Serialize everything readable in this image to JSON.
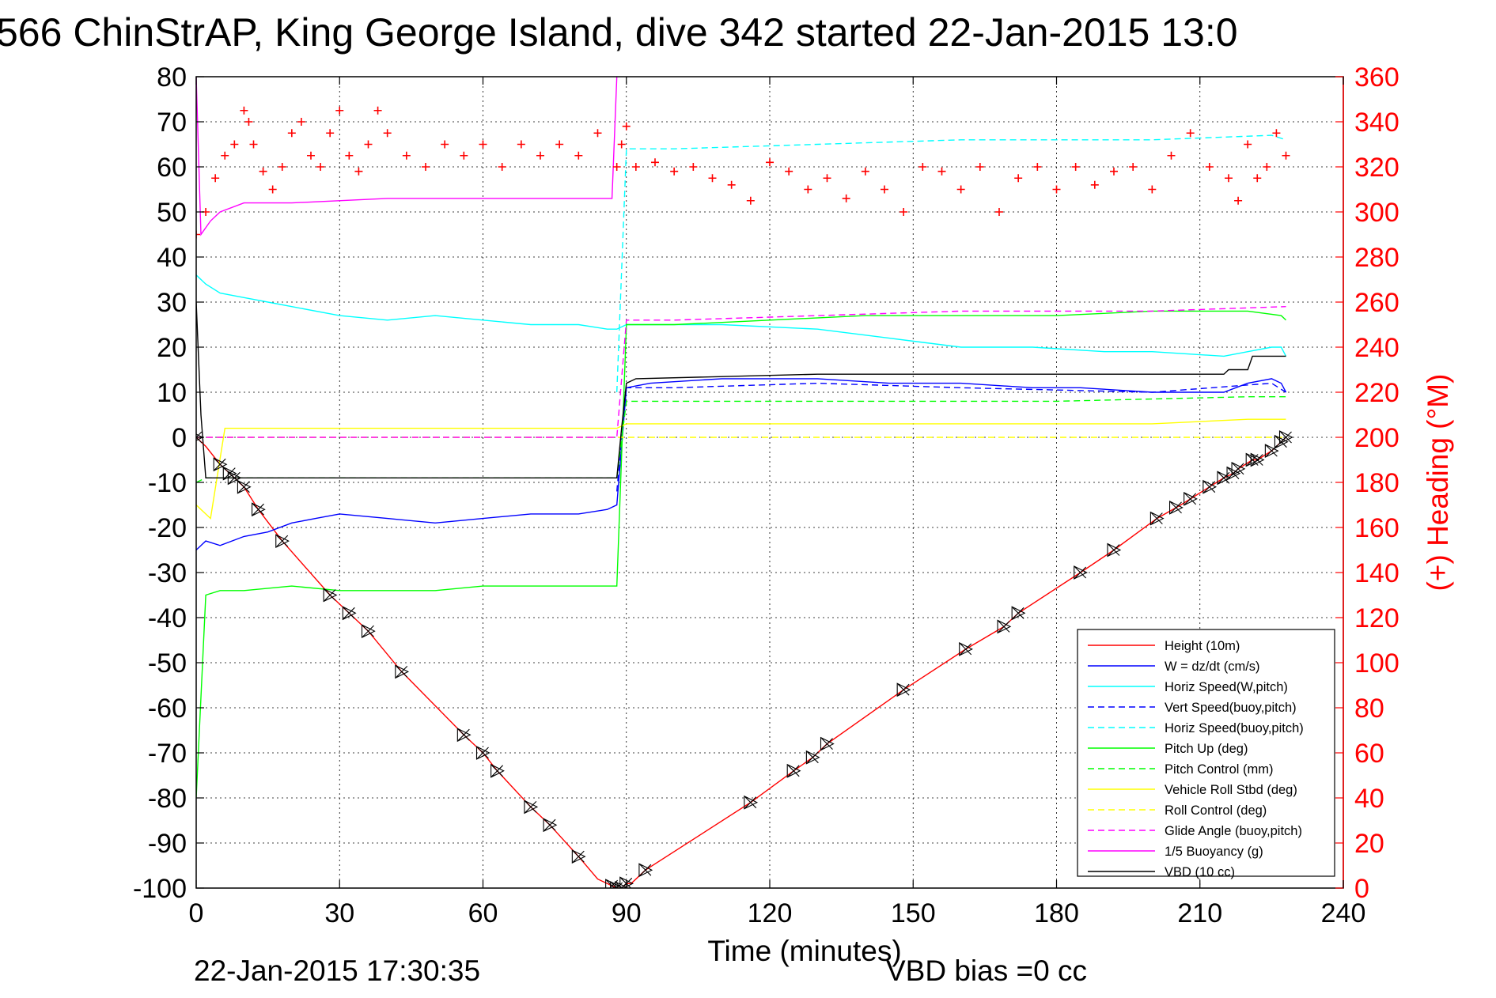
{
  "chart_data": {
    "type": "line",
    "title": "566 ChinStrAP, King George Island, dive 342 started 22-Jan-2015 13:0",
    "xlabel": "Time (minutes)",
    "ylabel_right": "(+) Heading (°M)",
    "xlim": [
      0,
      240
    ],
    "ylim": [
      -100,
      80
    ],
    "ylim_right": [
      0,
      360
    ],
    "x_ticks": [
      "0",
      "30",
      "60",
      "90",
      "120",
      "150",
      "180",
      "210",
      "240"
    ],
    "y_ticks": [
      "80",
      "70",
      "60",
      "50",
      "40",
      "30",
      "20",
      "10",
      "0",
      "-10",
      "-20",
      "-30",
      "-40",
      "-50",
      "-60",
      "-70",
      "-80",
      "-90",
      "-100"
    ],
    "y_right_ticks": [
      "360",
      "340",
      "320",
      "300",
      "280",
      "260",
      "240",
      "220",
      "200",
      "180",
      "160",
      "140",
      "120",
      "100",
      "80",
      "60",
      "40",
      "20",
      "0"
    ],
    "grid": true,
    "legend_position": "bottom-right",
    "footer_left": "22-Jan-2015 17:30:35",
    "footer_right": "VBD bias =0 cc",
    "series": [
      {
        "name": "Height (10m)",
        "color": "#ff0000",
        "style": "solid",
        "x": [
          0,
          2,
          5,
          8,
          10,
          13,
          18,
          28,
          32,
          36,
          43,
          56,
          60,
          63,
          70,
          74,
          80,
          84,
          88,
          89,
          90,
          91,
          94,
          116,
          125,
          129,
          132,
          148,
          161,
          169,
          172,
          185,
          192,
          201,
          206,
          209,
          212,
          215,
          217,
          218,
          221,
          222,
          225,
          227,
          228
        ],
        "y": [
          0,
          -2,
          -6,
          -9,
          -11,
          -16,
          -23,
          -35,
          -39,
          -43,
          -52,
          -66,
          -70,
          -74,
          -82,
          -86,
          -93,
          -98,
          -100,
          -100,
          -99,
          -99,
          -96,
          -81,
          -74,
          -71,
          -68,
          -56,
          -47,
          -42,
          -39,
          -30,
          -25,
          -18,
          -15,
          -13,
          -11,
          -9,
          -8,
          -7,
          -5,
          -5,
          -3,
          -1,
          0
        ]
      },
      {
        "name": "W = dz/dt (cm/s)",
        "color": "#0000ff",
        "style": "solid",
        "x": [
          0,
          2,
          5,
          10,
          15,
          20,
          25,
          30,
          40,
          50,
          60,
          70,
          80,
          86,
          88,
          90,
          95,
          110,
          130,
          145,
          160,
          175,
          185,
          200,
          215,
          220,
          225,
          227,
          228
        ],
        "y": [
          -25,
          -23,
          -24,
          -22,
          -21,
          -19,
          -18,
          -17,
          -18,
          -19,
          -18,
          -17,
          -17,
          -16,
          -15,
          11,
          12,
          13,
          13,
          12,
          12,
          11,
          11,
          10,
          10,
          12,
          13,
          12,
          10
        ]
      },
      {
        "name": "Horiz Speed(W,pitch)",
        "color": "#00ffff",
        "style": "solid",
        "x": [
          0,
          2,
          5,
          10,
          15,
          20,
          30,
          40,
          50,
          60,
          70,
          80,
          86,
          88,
          90,
          95,
          110,
          130,
          145,
          160,
          175,
          190,
          200,
          215,
          220,
          225,
          227,
          228
        ],
        "y": [
          36,
          34,
          32,
          31,
          30,
          29,
          27,
          26,
          27,
          26,
          25,
          25,
          24,
          24,
          25,
          25,
          25,
          24,
          22,
          20,
          20,
          19,
          19,
          18,
          19,
          20,
          20,
          18
        ]
      },
      {
        "name": "Vert Speed(buoy,pitch)",
        "color": "#0000ff",
        "style": "dashed",
        "x": [
          88,
          90,
          100,
          130,
          160,
          200,
          225,
          228
        ],
        "y": [
          -12,
          11,
          11,
          12,
          11,
          10,
          12,
          10
        ]
      },
      {
        "name": "Horiz Speed(buoy,pitch)",
        "color": "#00ffff",
        "style": "dashed",
        "x": [
          88,
          90,
          100,
          130,
          160,
          200,
          225,
          228
        ],
        "y": [
          10,
          64,
          64,
          65,
          66,
          66,
          67,
          66
        ]
      },
      {
        "name": "Pitch Up (deg)",
        "color": "#00ff00",
        "style": "solid",
        "x": [
          0,
          2,
          5,
          10,
          20,
          30,
          40,
          50,
          60,
          70,
          80,
          86,
          88,
          90,
          100,
          120,
          140,
          160,
          180,
          200,
          220,
          227,
          228
        ],
        "y": [
          -80,
          -35,
          -34,
          -34,
          -33,
          -34,
          -34,
          -34,
          -33,
          -33,
          -33,
          -33,
          -33,
          25,
          25,
          26,
          27,
          27,
          27,
          28,
          28,
          27,
          26
        ]
      },
      {
        "name": "Pitch Control (mm)",
        "color": "#00ff00",
        "style": "dashed",
        "x": [
          0,
          2,
          88,
          90,
          130,
          180,
          220,
          228
        ],
        "y": [
          -10,
          -9,
          -9,
          8,
          8,
          8,
          9,
          9
        ]
      },
      {
        "name": "Vehicle Roll Stbd (deg)",
        "color": "#ffff00",
        "style": "solid",
        "x": [
          0,
          3,
          6,
          10,
          20,
          30,
          40,
          50,
          60,
          70,
          80,
          88,
          90,
          100,
          120,
          140,
          160,
          180,
          200,
          220,
          228
        ],
        "y": [
          -15,
          -18,
          2,
          2,
          2,
          2,
          2,
          2,
          2,
          2,
          2,
          2,
          3,
          3,
          3,
          3,
          3,
          3,
          3,
          4,
          4
        ]
      },
      {
        "name": "Roll Control (deg)",
        "color": "#ffff00",
        "style": "dashed",
        "x": [
          0,
          2,
          88,
          90,
          200,
          228
        ],
        "y": [
          0,
          0,
          0,
          0,
          0,
          0
        ]
      },
      {
        "name": "Glide Angle (buoy,pitch)",
        "color": "#ff00ff",
        "style": "dashed",
        "x": [
          0,
          2,
          88,
          90,
          100,
          130,
          160,
          200,
          228
        ],
        "y": [
          0,
          0,
          0,
          26,
          26,
          27,
          28,
          28,
          29
        ]
      },
      {
        "name": "1/5 Buoyancy (g)",
        "color": "#ff00ff",
        "style": "solid",
        "x": [
          0,
          1,
          3,
          5,
          10,
          20,
          40,
          60,
          80,
          86,
          87,
          88
        ],
        "y": [
          80,
          45,
          48,
          50,
          52,
          52,
          53,
          53,
          53,
          53,
          53,
          80
        ]
      },
      {
        "name": "VBD (10 cc)",
        "color": "#000000",
        "style": "solid",
        "x": [
          0,
          1,
          2,
          88,
          89,
          90,
          92,
          130,
          160,
          200,
          215,
          216,
          220,
          221,
          227,
          228
        ],
        "y": [
          30,
          5,
          -9,
          -9,
          2,
          12,
          13,
          14,
          14,
          14,
          14,
          15,
          15,
          18,
          18,
          18
        ]
      }
    ],
    "heading_series": {
      "name": "(+) Heading",
      "color": "#ff0000",
      "marker": "+",
      "x": [
        0,
        2,
        4,
        6,
        8,
        10,
        11,
        12,
        14,
        16,
        18,
        20,
        22,
        24,
        26,
        28,
        30,
        32,
        34,
        36,
        38,
        40,
        44,
        48,
        52,
        56,
        60,
        64,
        68,
        72,
        76,
        80,
        84,
        88,
        89,
        90,
        92,
        96,
        100,
        104,
        108,
        112,
        116,
        120,
        124,
        128,
        132,
        136,
        140,
        144,
        148,
        152,
        156,
        160,
        164,
        168,
        172,
        176,
        180,
        184,
        188,
        192,
        196,
        200,
        204,
        208,
        212,
        216,
        218,
        220,
        222,
        224,
        226,
        228
      ],
      "y": [
        290,
        300,
        315,
        325,
        330,
        345,
        340,
        330,
        318,
        310,
        320,
        335,
        340,
        325,
        320,
        335,
        345,
        325,
        318,
        330,
        345,
        335,
        325,
        320,
        330,
        325,
        330,
        320,
        330,
        325,
        330,
        325,
        335,
        320,
        330,
        338,
        320,
        322,
        318,
        320,
        315,
        312,
        305,
        322,
        318,
        310,
        315,
        306,
        318,
        310,
        300,
        320,
        318,
        310,
        320,
        300,
        315,
        320,
        310,
        320,
        312,
        318,
        320,
        310,
        325,
        335,
        320,
        315,
        305,
        330,
        315,
        320,
        335,
        325
      ]
    },
    "glider_marker_times": [
      0,
      5,
      7,
      8,
      10,
      13,
      18,
      28,
      32,
      36,
      43,
      56,
      60,
      63,
      70,
      74,
      80,
      87,
      88,
      89,
      90,
      94,
      116,
      125,
      129,
      132,
      148,
      161,
      169,
      172,
      185,
      192,
      201,
      205,
      208,
      212,
      215,
      217,
      218,
      221,
      222,
      225,
      227,
      228
    ]
  }
}
